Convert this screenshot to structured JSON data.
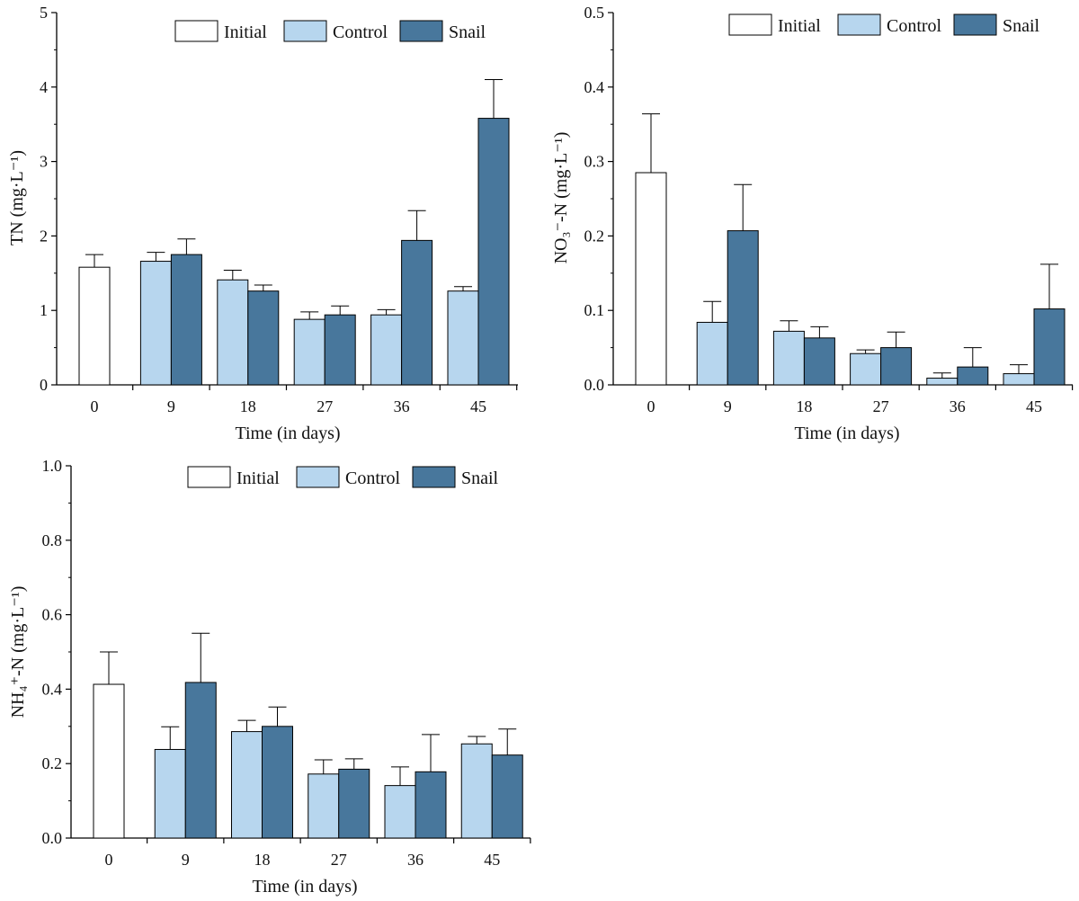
{
  "legend": [
    {
      "key": "initial",
      "label": "Initial",
      "color": "#ffffff"
    },
    {
      "key": "control",
      "label": "Control",
      "color": "#b7d6ee"
    },
    {
      "key": "snail",
      "label": "Snail",
      "color": "#48779c"
    }
  ],
  "chart_data": [
    {
      "id": "tn",
      "type": "bar",
      "title": "",
      "xlabel": "Time (in days)",
      "ylabel": "TN (mg·L⁻¹)",
      "categories": [
        "0",
        "9",
        "18",
        "27",
        "36",
        "45"
      ],
      "ylim": [
        0,
        5
      ],
      "yticks": [
        "0",
        "1",
        "2",
        "3",
        "4",
        "5"
      ],
      "grid": false,
      "legend_position": "top-right",
      "series": [
        {
          "name": "Initial",
          "values": [
            1.58,
            null,
            null,
            null,
            null,
            null
          ],
          "errors": [
            0.17,
            null,
            null,
            null,
            null,
            null
          ]
        },
        {
          "name": "Control",
          "values": [
            null,
            1.66,
            1.41,
            0.88,
            0.94,
            1.26
          ],
          "errors": [
            null,
            0.12,
            0.13,
            0.1,
            0.07,
            0.06
          ]
        },
        {
          "name": "Snail",
          "values": [
            null,
            1.75,
            1.26,
            0.94,
            1.94,
            3.58
          ],
          "errors": [
            null,
            0.21,
            0.08,
            0.12,
            0.4,
            0.52
          ]
        }
      ]
    },
    {
      "id": "no3",
      "type": "bar",
      "title": "",
      "xlabel": "Time (in days)",
      "ylabel": "NO₃⁻-N (mg·L⁻¹)",
      "categories": [
        "0",
        "9",
        "18",
        "27",
        "36",
        "45"
      ],
      "ylim": [
        0,
        0.5
      ],
      "yticks": [
        "0.0",
        "0.1",
        "0.2",
        "0.3",
        "0.4",
        "0.5"
      ],
      "grid": false,
      "legend_position": "top-right",
      "series": [
        {
          "name": "Initial",
          "values": [
            0.285,
            null,
            null,
            null,
            null,
            null
          ],
          "errors": [
            0.079,
            null,
            null,
            null,
            null,
            null
          ]
        },
        {
          "name": "Control",
          "values": [
            null,
            0.084,
            0.072,
            0.042,
            0.009,
            0.015
          ],
          "errors": [
            null,
            0.028,
            0.014,
            0.005,
            0.007,
            0.012
          ]
        },
        {
          "name": "Snail",
          "values": [
            null,
            0.207,
            0.063,
            0.05,
            0.024,
            0.102
          ],
          "errors": [
            null,
            0.062,
            0.015,
            0.021,
            0.026,
            0.06
          ]
        }
      ]
    },
    {
      "id": "nh4",
      "type": "bar",
      "title": "",
      "xlabel": "Time (in days)",
      "ylabel": "NH₄⁺-N (mg·L⁻¹)",
      "categories": [
        "0",
        "9",
        "18",
        "27",
        "36",
        "45"
      ],
      "ylim": [
        0,
        1.0
      ],
      "yticks": [
        "0.0",
        "0.2",
        "0.4",
        "0.6",
        "0.8",
        "1.0"
      ],
      "grid": false,
      "legend_position": "top-right",
      "series": [
        {
          "name": "Initial",
          "values": [
            0.413,
            null,
            null,
            null,
            null,
            null
          ],
          "errors": [
            0.087,
            null,
            null,
            null,
            null,
            null
          ]
        },
        {
          "name": "Control",
          "values": [
            null,
            0.238,
            0.286,
            0.172,
            0.141,
            0.253
          ],
          "errors": [
            null,
            0.061,
            0.03,
            0.038,
            0.05,
            0.02
          ]
        },
        {
          "name": "Snail",
          "values": [
            null,
            0.418,
            0.3,
            0.185,
            0.178,
            0.223
          ],
          "errors": [
            null,
            0.132,
            0.052,
            0.028,
            0.1,
            0.07
          ]
        }
      ]
    }
  ]
}
